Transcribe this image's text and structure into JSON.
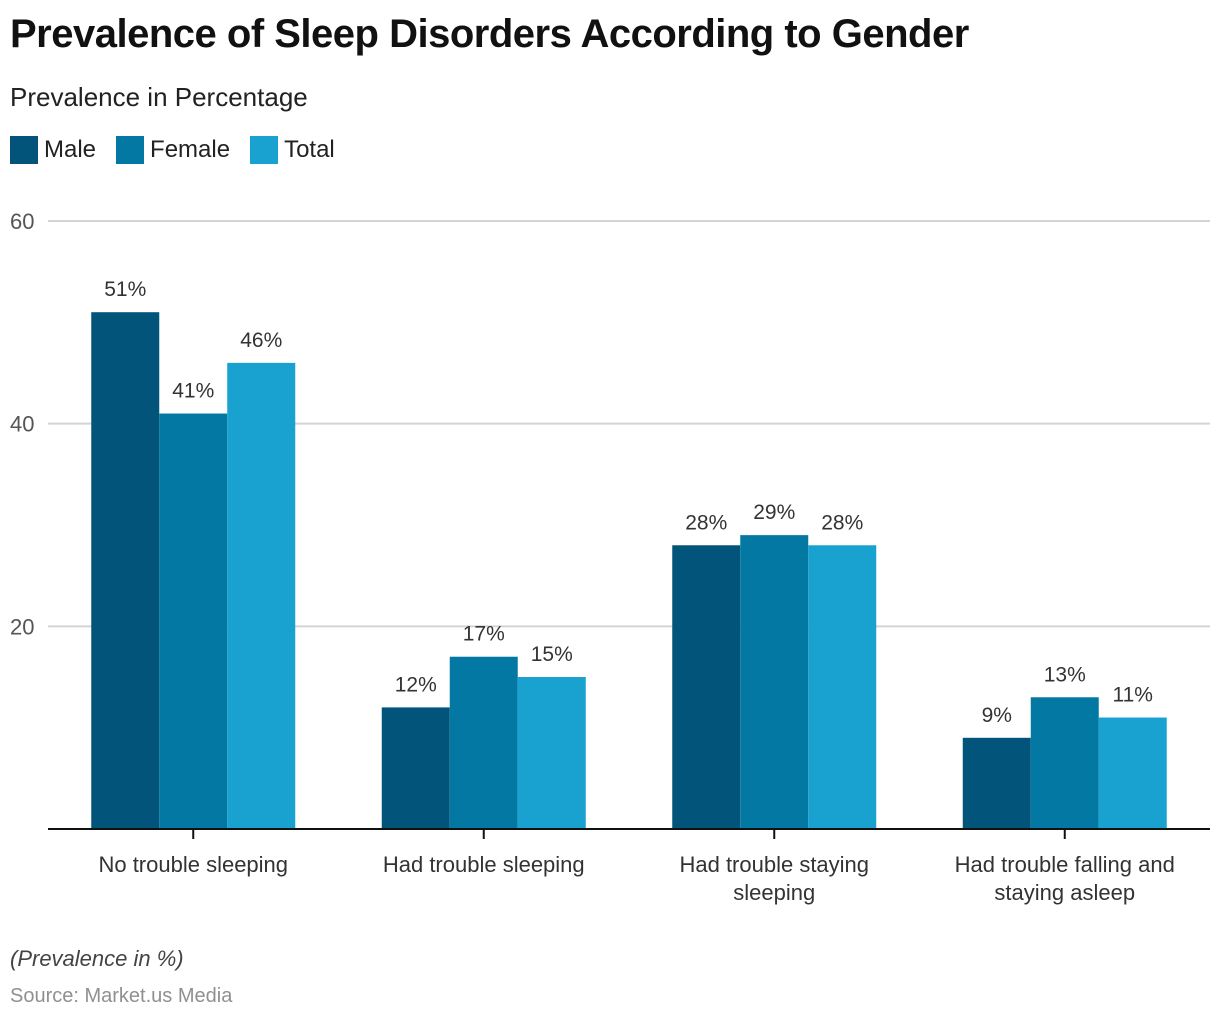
{
  "chart_data": {
    "type": "bar",
    "title": "Prevalence of Sleep Disorders According to Gender",
    "subtitle": "Prevalence in Percentage",
    "xlabel": "",
    "ylabel": "",
    "ylim": [
      0,
      60
    ],
    "yticks": [
      20,
      40,
      60
    ],
    "grid": true,
    "legend_position": "top-left",
    "categories": [
      [
        "No trouble sleeping"
      ],
      [
        "Had trouble sleeping"
      ],
      [
        "Had trouble staying",
        "sleeping"
      ],
      [
        "Had trouble falling and",
        "staying asleep"
      ]
    ],
    "series": [
      {
        "name": "Male",
        "color": "#02547a",
        "values": [
          51,
          12,
          28,
          9
        ],
        "labels": [
          "51%",
          "12%",
          "28%",
          "9%"
        ]
      },
      {
        "name": "Female",
        "color": "#0278a3",
        "values": [
          41,
          17,
          29,
          13
        ],
        "labels": [
          "41%",
          "17%",
          "29%",
          "13%"
        ]
      },
      {
        "name": "Total",
        "color": "#19a1cf",
        "values": [
          46,
          15,
          28,
          11
        ],
        "labels": [
          "46%",
          "15%",
          "28%",
          "11%"
        ]
      }
    ],
    "note": "(Prevalence in %)",
    "source": "Source: Market.us Media"
  }
}
